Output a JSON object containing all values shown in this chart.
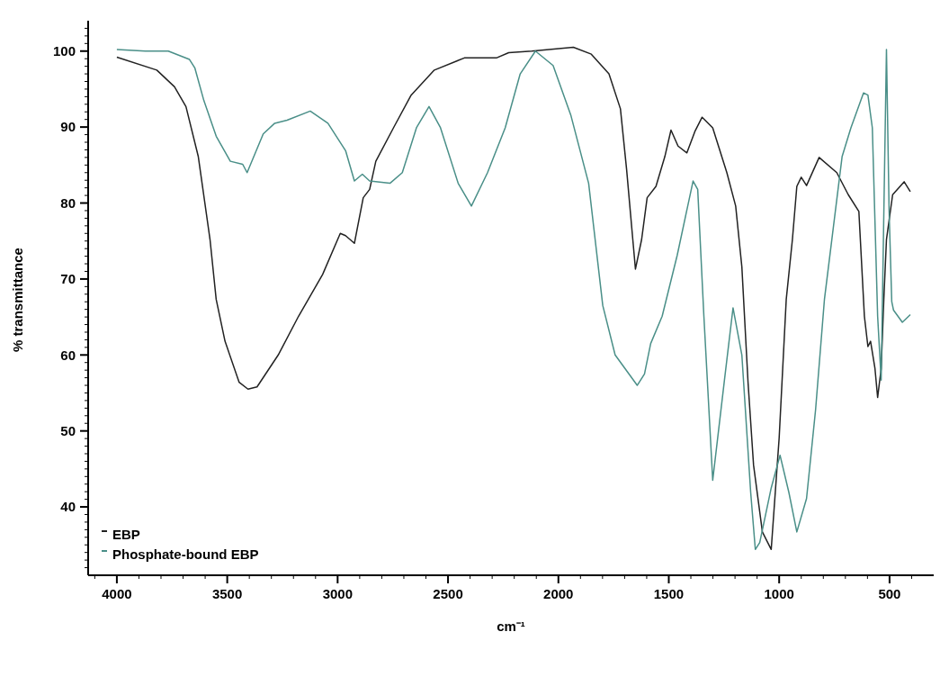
{
  "chart_data": {
    "type": "line",
    "xlabel": "cm⁻¹",
    "ylabel": "% transmittance",
    "xlim": [
      4130,
      300
    ],
    "ylim": [
      31,
      104
    ],
    "xticks": [
      {
        "value": 4100,
        "label": null
      },
      4000,
      {
        "value": 3900,
        "label": null
      },
      {
        "value": 3800,
        "label": null
      },
      {
        "value": 3700,
        "label": null
      },
      {
        "value": 3600,
        "label": null
      },
      3500,
      {
        "value": 3400,
        "label": null
      },
      {
        "value": 3300,
        "label": null
      },
      {
        "value": 3200,
        "label": null
      },
      {
        "value": 3100,
        "label": null
      },
      3000,
      {
        "value": 2900,
        "label": null
      },
      {
        "value": 2800,
        "label": null
      },
      {
        "value": 2700,
        "label": null
      },
      {
        "value": 2600,
        "label": null
      },
      2500,
      {
        "value": 2400,
        "label": null
      },
      {
        "value": 2300,
        "label": null
      },
      {
        "value": 2200,
        "label": null
      },
      {
        "value": 2100,
        "label": null
      },
      2000,
      {
        "value": 1900,
        "label": null
      },
      {
        "value": 1800,
        "label": null
      },
      {
        "value": 1700,
        "label": null
      },
      {
        "value": 1600,
        "label": null
      },
      1500,
      {
        "value": 1400,
        "label": null
      },
      {
        "value": 1300,
        "label": null
      },
      {
        "value": 1200,
        "label": null
      },
      {
        "value": 1100,
        "label": null
      },
      1000,
      {
        "value": 900,
        "label": null
      },
      {
        "value": 800,
        "label": null
      },
      {
        "value": 700,
        "label": null
      },
      {
        "value": 600,
        "label": null
      },
      500,
      {
        "value": 400,
        "label": null
      }
    ],
    "yticks": [
      {
        "value": 32,
        "label": null
      },
      {
        "value": 33,
        "label": null
      },
      {
        "value": 34,
        "label": null
      },
      {
        "value": 35,
        "label": null
      },
      {
        "value": 36,
        "label": null
      },
      {
        "value": 37,
        "label": null
      },
      {
        "value": 38,
        "label": null
      },
      {
        "value": 39,
        "label": null
      },
      40,
      {
        "value": 41,
        "label": null
      },
      {
        "value": 42,
        "label": null
      },
      {
        "value": 43,
        "label": null
      },
      {
        "value": 44,
        "label": null
      },
      {
        "value": 45,
        "label": null
      },
      {
        "value": 46,
        "label": null
      },
      {
        "value": 47,
        "label": null
      },
      {
        "value": 48,
        "label": null
      },
      {
        "value": 49,
        "label": null
      },
      50,
      {
        "value": 51,
        "label": null
      },
      {
        "value": 52,
        "label": null
      },
      {
        "value": 53,
        "label": null
      },
      {
        "value": 54,
        "label": null
      },
      {
        "value": 55,
        "label": null
      },
      {
        "value": 56,
        "label": null
      },
      {
        "value": 57,
        "label": null
      },
      {
        "value": 58,
        "label": null
      },
      {
        "value": 59,
        "label": null
      },
      60,
      {
        "value": 61,
        "label": null
      },
      {
        "value": 62,
        "label": null
      },
      {
        "value": 63,
        "label": null
      },
      {
        "value": 64,
        "label": null
      },
      {
        "value": 65,
        "label": null
      },
      {
        "value": 66,
        "label": null
      },
      {
        "value": 67,
        "label": null
      },
      {
        "value": 68,
        "label": null
      },
      {
        "value": 69,
        "label": null
      },
      70,
      {
        "value": 71,
        "label": null
      },
      {
        "value": 72,
        "label": null
      },
      {
        "value": 73,
        "label": null
      },
      {
        "value": 74,
        "label": null
      },
      {
        "value": 75,
        "label": null
      },
      {
        "value": 76,
        "label": null
      },
      {
        "value": 77,
        "label": null
      },
      {
        "value": 78,
        "label": null
      },
      {
        "value": 79,
        "label": null
      },
      80,
      {
        "value": 81,
        "label": null
      },
      {
        "value": 82,
        "label": null
      },
      {
        "value": 83,
        "label": null
      },
      {
        "value": 84,
        "label": null
      },
      {
        "value": 85,
        "label": null
      },
      {
        "value": 86,
        "label": null
      },
      {
        "value": 87,
        "label": null
      },
      {
        "value": 88,
        "label": null
      },
      {
        "value": 89,
        "label": null
      },
      90,
      {
        "value": 91,
        "label": null
      },
      {
        "value": 92,
        "label": null
      },
      {
        "value": 93,
        "label": null
      },
      {
        "value": 94,
        "label": null
      },
      {
        "value": 95,
        "label": null
      },
      {
        "value": 96,
        "label": null
      },
      {
        "value": 97,
        "label": null
      },
      {
        "value": 98,
        "label": null
      },
      {
        "value": 99,
        "label": null
      },
      100,
      {
        "value": 101,
        "label": null
      },
      {
        "value": 102,
        "label": null
      },
      {
        "value": 103,
        "label": null
      }
    ],
    "grid": false,
    "legend": "bottom left",
    "marker": "none",
    "line_style": "solid",
    "series": [
      {
        "name": "EBP",
        "color": "#222222",
        "x": [
          4000,
          3819,
          3739,
          3687,
          3631,
          3578,
          3550,
          3510,
          3446,
          3406,
          3365,
          3269,
          3177,
          3068,
          2988,
          2964,
          2924,
          2884,
          2855,
          2827,
          2747,
          2667,
          2562,
          2426,
          2281,
          2225,
          2120,
          1932,
          1851,
          1771,
          1719,
          1691,
          1663,
          1651,
          1623,
          1598,
          1558,
          1518,
          1490,
          1458,
          1418,
          1382,
          1349,
          1301,
          1237,
          1197,
          1169,
          1141,
          1116,
          1076,
          1036,
          1000,
          968,
          940,
          920,
          900,
          876,
          819,
          739,
          687,
          639,
          614,
          598,
          586,
          566,
          554,
          538,
          526,
          514,
          486,
          434,
          406
        ],
        "values": [
          99.2,
          97.5,
          95.3,
          92.7,
          86.1,
          75.2,
          67.3,
          61.8,
          56.4,
          55.5,
          55.8,
          60.0,
          65.1,
          70.6,
          76.0,
          75.7,
          74.7,
          80.7,
          81.8,
          85.5,
          89.9,
          94.2,
          97.5,
          99.1,
          99.1,
          99.8,
          100.0,
          100.5,
          99.6,
          97.0,
          92.4,
          84.4,
          75.2,
          71.3,
          75.2,
          80.7,
          82.2,
          86.1,
          89.6,
          87.5,
          86.6,
          89.4,
          91.3,
          89.9,
          84.0,
          79.6,
          71.6,
          56.4,
          45.5,
          36.7,
          34.4,
          49.1,
          67.3,
          75.2,
          82.2,
          83.4,
          82.3,
          86.0,
          84.0,
          81.1,
          78.9,
          65.1,
          61.1,
          61.8,
          58.2,
          54.4,
          58.2,
          67.3,
          75.2,
          81.1,
          82.8,
          81.5
        ]
      },
      {
        "name": "Phosphate-bound EBP",
        "color": "#4a8f88",
        "x": [
          4000,
          3871,
          3767,
          3671,
          3647,
          3606,
          3550,
          3486,
          3430,
          3410,
          3337,
          3285,
          3229,
          3124,
          3044,
          2964,
          2924,
          2888,
          2855,
          2763,
          2707,
          2643,
          2586,
          2534,
          2454,
          2394,
          2321,
          2241,
          2173,
          2104,
          2024,
          1944,
          1863,
          1799,
          1743,
          1643,
          1610,
          1582,
          1530,
          1462,
          1390,
          1369,
          1341,
          1301,
          1249,
          1209,
          1169,
          1129,
          1108,
          1088,
          1036,
          996,
          956,
          920,
          876,
          835,
          795,
          715,
          675,
          618,
          598,
          578,
          554,
          538,
          514,
          502,
          490,
          482,
          442,
          406
        ],
        "values": [
          100.2,
          100.0,
          100.0,
          98.9,
          97.8,
          93.5,
          88.8,
          85.5,
          85.1,
          84.0,
          89.1,
          90.5,
          90.9,
          92.1,
          90.5,
          86.9,
          82.9,
          83.8,
          82.9,
          82.6,
          84.0,
          89.9,
          92.7,
          89.9,
          82.6,
          79.6,
          84.0,
          89.9,
          97.0,
          100.0,
          98.1,
          91.6,
          82.6,
          66.5,
          60.0,
          56.0,
          57.5,
          61.5,
          65.1,
          73.1,
          82.9,
          81.8,
          65.1,
          43.5,
          56.4,
          66.2,
          60.0,
          41.9,
          34.4,
          35.3,
          42.5,
          46.8,
          41.9,
          36.7,
          41.1,
          52.8,
          67.3,
          86.1,
          89.9,
          94.5,
          94.2,
          89.9,
          65.1,
          56.7,
          100.2,
          78.9,
          67.0,
          65.9,
          64.3,
          65.3
        ]
      }
    ]
  }
}
